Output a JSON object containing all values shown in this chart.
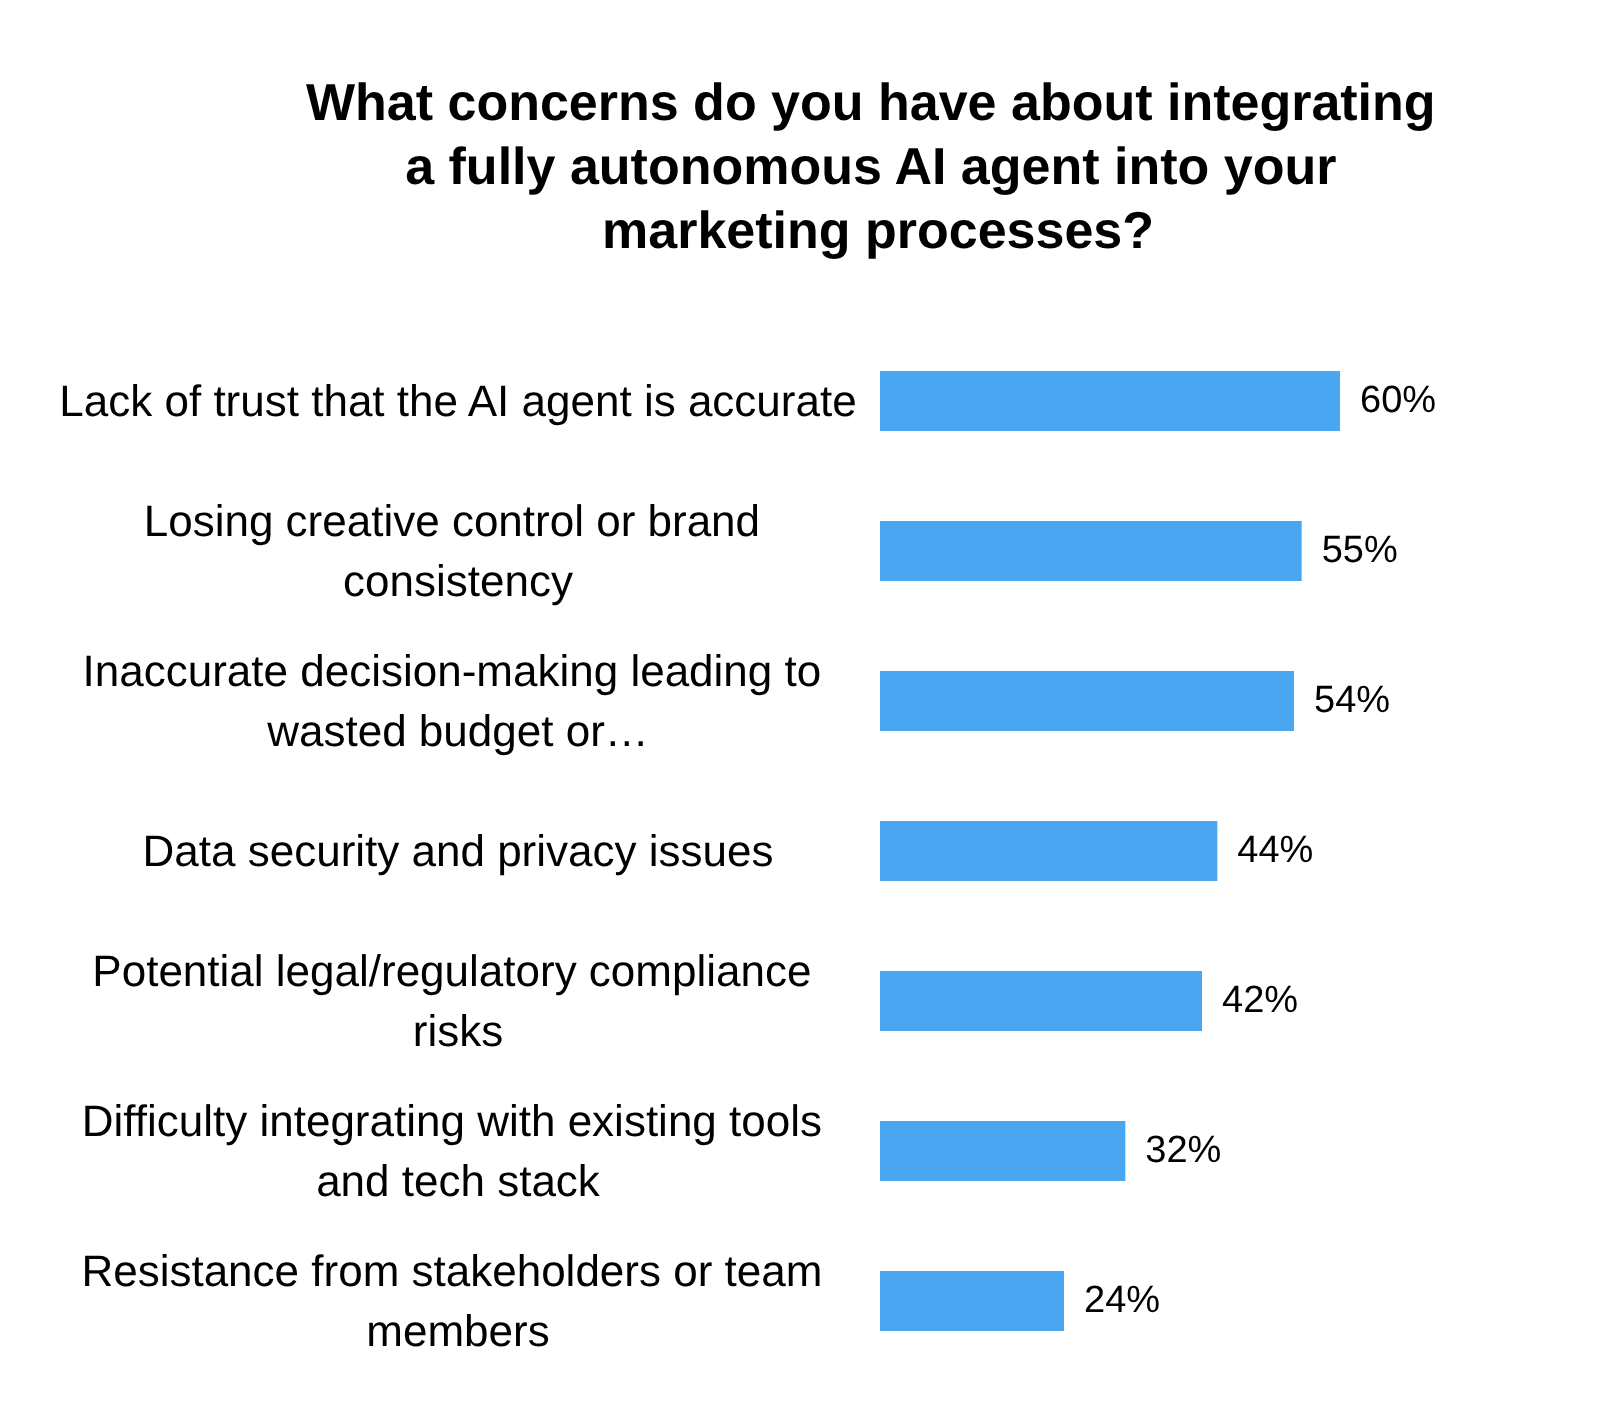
{
  "chart_data": {
    "type": "bar",
    "orientation": "horizontal",
    "title": "What concerns do you have about integrating a fully autonomous AI agent into your marketing processes?",
    "categories": [
      "Lack of trust that the AI agent is accurate",
      "Losing creative control or brand consistency",
      "Inaccurate decision-making leading to wasted budget or…",
      "Data security and privacy issues",
      "Potential legal/regulatory compliance risks",
      "Difficulty integrating with existing tools and tech stack",
      "Resistance from stakeholders or team members"
    ],
    "values": [
      60,
      55,
      54,
      44,
      42,
      32,
      24
    ],
    "value_labels": [
      "60%",
      "55%",
      "54%",
      "44%",
      "42%",
      "32%",
      "24%"
    ],
    "color": "#4aa6f0"
  }
}
